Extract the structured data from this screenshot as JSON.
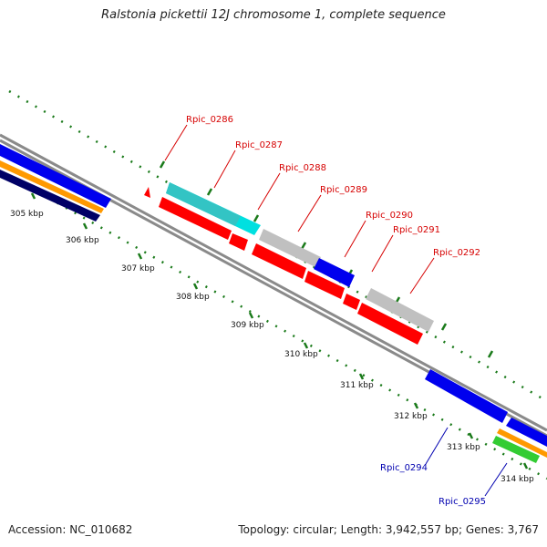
{
  "title": "Ralstonia pickettii 12J chromosome 1, complete sequence",
  "accession_text": "Accession: NC_010682",
  "topology_text": "Topology: circular; Length: 3,942,557 bp; Genes: 3,767",
  "colors": {
    "backbone": "#8a8a8a",
    "cds_red": "#ff0000",
    "cds_blue": "#0000ee",
    "cds_cyan": "#00e0e0",
    "cds_gray": "#c0c0c0",
    "orange": "#ff9900",
    "navy": "#000066",
    "green": "#33cc33",
    "tick_green": "#1a7a1a"
  },
  "scale_labels": [
    "305 kbp",
    "306 kbp",
    "307 kbp",
    "308 kbp",
    "309 kbp",
    "310 kbp",
    "311 kbp",
    "312 kbp",
    "313 kbp",
    "314 kbp"
  ],
  "gene_labels": [
    {
      "text": "Rpic_0286",
      "color": "red"
    },
    {
      "text": "Rpic_0287",
      "color": "red"
    },
    {
      "text": "Rpic_0288",
      "color": "red"
    },
    {
      "text": "Rpic_0289",
      "color": "red"
    },
    {
      "text": "Rpic_0290",
      "color": "red"
    },
    {
      "text": "Rpic_0291",
      "color": "red"
    },
    {
      "text": "Rpic_0292",
      "color": "red"
    },
    {
      "text": "Rpic_0294",
      "color": "blue"
    },
    {
      "text": "Rpic_0295",
      "color": "blue"
    }
  ]
}
